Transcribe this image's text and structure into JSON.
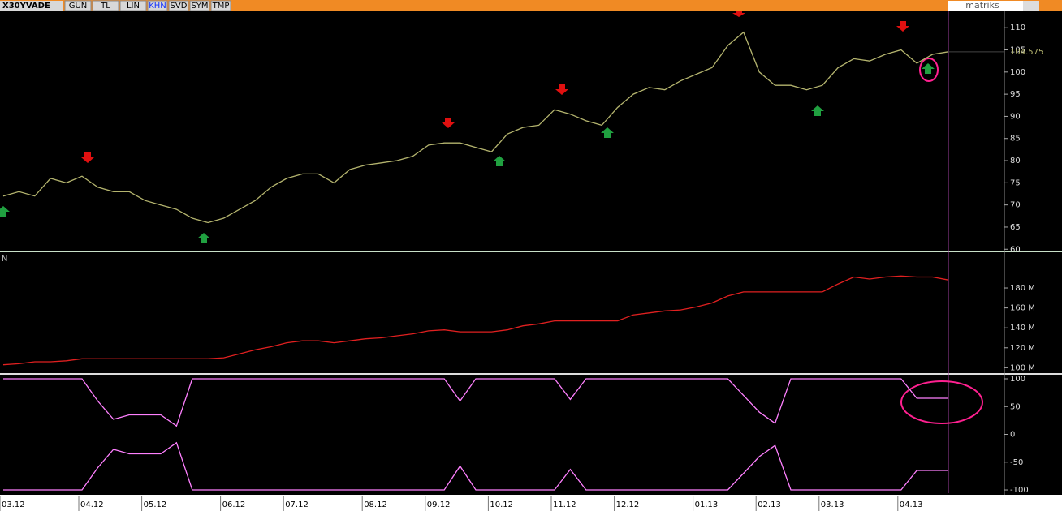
{
  "toolbar": {
    "symbol": "X30YVADE",
    "buttons": [
      "GUN",
      "TL",
      "LIN",
      "KHN",
      "SVD",
      "SYM",
      "TMP"
    ],
    "brand": "matriks"
  },
  "chart_data": [
    {
      "type": "line",
      "color": "#b4b46e",
      "ylim": [
        59.5,
        113.7
      ],
      "yticks": [
        60,
        65,
        70,
        75,
        80,
        85,
        90,
        95,
        100,
        105,
        110
      ],
      "values": [
        72,
        73,
        72,
        76,
        75,
        76.5,
        74,
        73,
        73,
        71,
        70,
        69,
        67,
        66,
        67,
        69,
        71,
        74,
        76,
        77,
        77,
        75,
        78,
        79,
        79.5,
        80,
        81,
        83.5,
        84,
        84,
        83,
        82,
        86,
        87.5,
        88,
        91.5,
        90.5,
        89,
        88,
        92,
        95,
        96.5,
        96,
        98,
        99.5,
        101,
        106,
        109,
        100,
        97,
        97,
        96,
        97,
        101,
        103,
        102.5,
        104,
        105,
        102,
        104,
        104.575
      ]
    },
    {
      "type": "line",
      "title": "N",
      "color": "#e02020",
      "ylim": [
        94600000,
        215000000
      ],
      "yticks": [
        {
          "value": 100000000,
          "label": "100 M"
        },
        {
          "value": 120000000,
          "label": "120 M"
        },
        {
          "value": 140000000,
          "label": "140 M"
        },
        {
          "value": 160000000,
          "label": "160 M"
        },
        {
          "value": 180000000,
          "label": "180 M"
        }
      ],
      "values": [
        103000000,
        104000000,
        106000000,
        106000000,
        107000000,
        109000000,
        109000000,
        109000000,
        109000000,
        109000000,
        109000000,
        109000000,
        109000000,
        109000000,
        110000000,
        114000000,
        118000000,
        121000000,
        125000000,
        127000000,
        127000000,
        125000000,
        127000000,
        129000000,
        130000000,
        132000000,
        134000000,
        137000000,
        138000000,
        136000000,
        136000000,
        136000000,
        138000000,
        142000000,
        144000000,
        147000000,
        147000000,
        147000000,
        147000000,
        147000000,
        153000000,
        155000000,
        157000000,
        158000000,
        161000000,
        165000000,
        172000000,
        176000000,
        176000000,
        176000000,
        176000000,
        176000000,
        176000000,
        184000000,
        191000000,
        189000000,
        191000000,
        192000000,
        191000000,
        191000000,
        188000000
      ]
    },
    {
      "type": "line",
      "ylim": [
        -105.8,
        107.3
      ],
      "yticks": [
        100,
        50,
        0,
        -50,
        -100
      ],
      "categories": [
        "03.12",
        null,
        null,
        null,
        null,
        "04.12",
        null,
        null,
        null,
        "05.12",
        null,
        null,
        null,
        null,
        "06.12",
        null,
        null,
        null,
        "07.12",
        null,
        null,
        null,
        null,
        "08.12",
        null,
        null,
        null,
        "09.12",
        null,
        null,
        null,
        "10.12",
        null,
        null,
        null,
        "11.12",
        null,
        null,
        null,
        "12.12",
        null,
        null,
        null,
        null,
        "01.13",
        null,
        null,
        null,
        "02.13",
        null,
        null,
        null,
        "03.13",
        null,
        null,
        null,
        null,
        "04.13",
        null,
        null,
        null
      ],
      "series": [
        {
          "color": "#ff80ff",
          "values": [
            100,
            100,
            100,
            100,
            100,
            100,
            60,
            27,
            35,
            35,
            35,
            15,
            100,
            100,
            100,
            100,
            100,
            100,
            100,
            100,
            100,
            100,
            100,
            100,
            100,
            100,
            100,
            100,
            100,
            60,
            100,
            100,
            100,
            100,
            100,
            100,
            63,
            100,
            100,
            100,
            100,
            100,
            100,
            100,
            100,
            100,
            100,
            70,
            40,
            20,
            100,
            100,
            100,
            100,
            100,
            100,
            100,
            100,
            65,
            65,
            65
          ]
        },
        {
          "color": "#ff80ff",
          "values": [
            -100,
            -100,
            -100,
            -100,
            -100,
            -100,
            -60,
            -27,
            -35,
            -35,
            -35,
            -15,
            -100,
            -100,
            -100,
            -100,
            -100,
            -100,
            -100,
            -100,
            -100,
            -100,
            -100,
            -100,
            -100,
            -100,
            -100,
            -100,
            -100,
            -57,
            -100,
            -100,
            -100,
            -100,
            -100,
            -100,
            -63,
            -100,
            -100,
            -100,
            -100,
            -100,
            -100,
            -100,
            -100,
            -100,
            -100,
            -70,
            -40,
            -20,
            -100,
            -100,
            -100,
            -100,
            -100,
            -100,
            -100,
            -100,
            -65,
            -65,
            -65
          ]
        }
      ]
    }
  ]
}
